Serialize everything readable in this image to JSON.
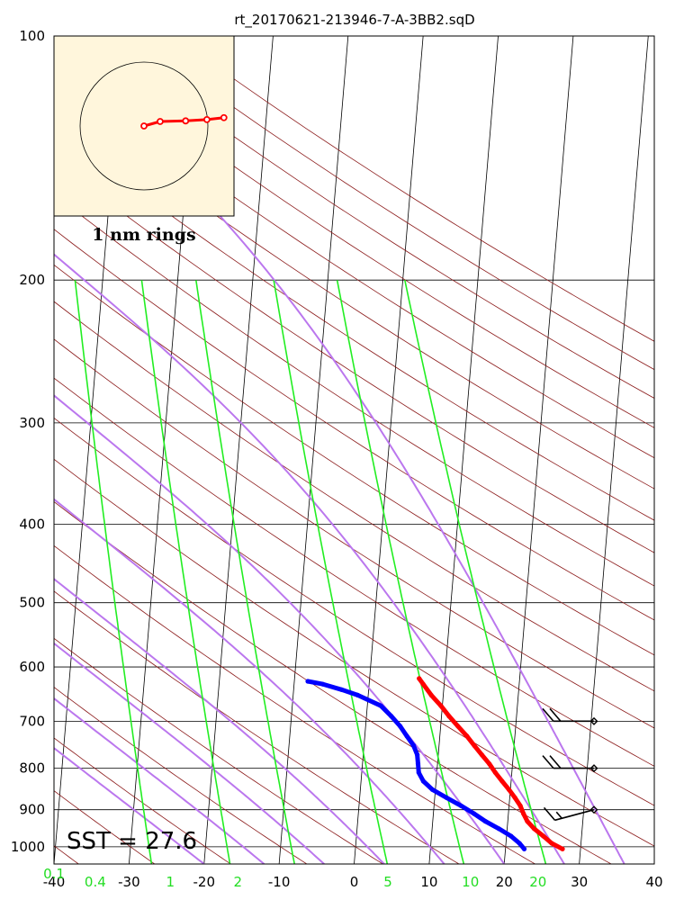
{
  "chart_data": {
    "type": "skew-t",
    "title": "rt_20170621-213946-7-A-3BB2.sqD",
    "xlim": [
      -40,
      40
    ],
    "ylim": [
      1050,
      100
    ],
    "y_scale": "log",
    "x_ticks": [
      -40,
      -30,
      -20,
      -10,
      0,
      10,
      20,
      30,
      40
    ],
    "y_ticks": [
      100,
      200,
      300,
      400,
      500,
      600,
      700,
      800,
      900,
      1000
    ],
    "mixing_ratio_labels": [
      "0.1",
      "0.4",
      "1",
      "2",
      "5",
      "10",
      "20"
    ],
    "mixing_ratio_label_temps": [
      -40,
      -34.5,
      -24.5,
      -15.5,
      4.5,
      15.5,
      24.5
    ],
    "isotherms": [
      -120,
      -110,
      -100,
      -90,
      -80,
      -70,
      -60,
      -50,
      -40,
      -30,
      -20,
      -10,
      0,
      10,
      20,
      30,
      40
    ],
    "dry_adiabat_thetas": [
      -40,
      -30,
      -20,
      -10,
      0,
      10,
      20,
      30,
      40,
      50,
      60,
      70,
      80,
      90,
      100,
      110,
      120,
      130,
      140,
      150,
      160,
      170,
      180,
      190
    ],
    "moist_adiabat_start_temps": [
      -20,
      -12,
      -4,
      4,
      12,
      20,
      28,
      36
    ],
    "mixing_ratio_values": [
      0.1,
      0.4,
      1,
      2,
      5,
      10,
      20
    ],
    "series": [
      {
        "name": "temperature",
        "color": "#ff0000",
        "points": [
          [
            1006,
            27.6
          ],
          [
            990,
            26.1
          ],
          [
            970,
            24.9
          ],
          [
            950,
            23.6
          ],
          [
            930,
            22.6
          ],
          [
            910,
            22.0
          ],
          [
            890,
            21.5
          ],
          [
            870,
            20.7
          ],
          [
            850,
            19.8
          ],
          [
            830,
            18.8
          ],
          [
            810,
            17.8
          ],
          [
            790,
            16.9
          ],
          [
            770,
            15.8
          ],
          [
            750,
            14.7
          ],
          [
            730,
            13.6
          ],
          [
            710,
            12.3
          ],
          [
            690,
            11.0
          ],
          [
            670,
            9.8
          ],
          [
            650,
            8.4
          ],
          [
            630,
            7.2
          ],
          [
            620,
            6.6
          ]
        ]
      },
      {
        "name": "dewpoint",
        "color": "#0000ff",
        "points": [
          [
            1006,
            22.5
          ],
          [
            990,
            21.8
          ],
          [
            970,
            20.6
          ],
          [
            950,
            18.9
          ],
          [
            930,
            17.0
          ],
          [
            910,
            15.4
          ],
          [
            890,
            13.6
          ],
          [
            870,
            11.6
          ],
          [
            850,
            9.6
          ],
          [
            830,
            8.3
          ],
          [
            810,
            7.6
          ],
          [
            790,
            7.4
          ],
          [
            770,
            7.2
          ],
          [
            750,
            6.6
          ],
          [
            730,
            5.6
          ],
          [
            710,
            4.6
          ],
          [
            690,
            3.3
          ],
          [
            670,
            1.8
          ],
          [
            650,
            -1.4
          ],
          [
            640,
            -3.6
          ],
          [
            630,
            -6.2
          ],
          [
            625,
            -8.2
          ]
        ]
      }
    ],
    "wind_barbs": [
      {
        "pressure": 700,
        "direction_deg": 270,
        "speed_kt": 20
      },
      {
        "pressure": 800,
        "direction_deg": 270,
        "speed_kt": 20
      },
      {
        "pressure": 900,
        "direction_deg": 255,
        "speed_kt": 15
      }
    ],
    "hodograph": {
      "caption": "1 nm rings",
      "points": [
        [
          0,
          0
        ],
        [
          0.19,
          0.07
        ],
        [
          0.49,
          0.08
        ],
        [
          0.74,
          0.1
        ],
        [
          0.94,
          0.13
        ]
      ]
    },
    "sst_text": "SST = 27.6"
  }
}
